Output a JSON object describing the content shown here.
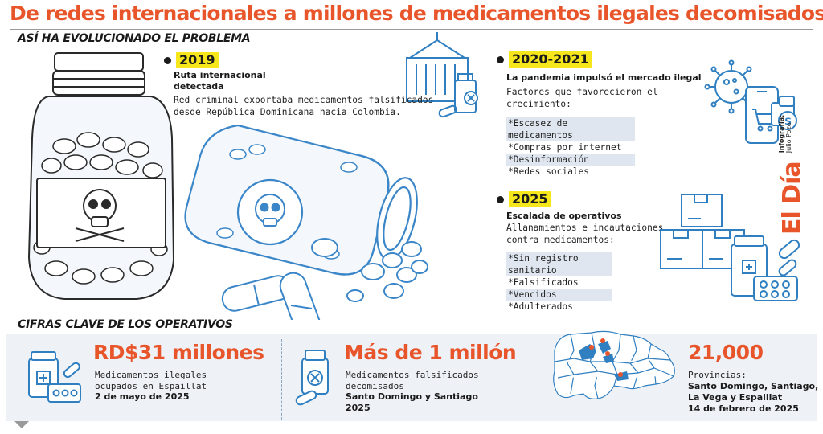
{
  "header": {
    "title": "De redes internacionales a millones de medicamentos ilegales decomisados",
    "section_evolution": "ASÍ HA EVOLUCIONADO EL PROBLEMA",
    "section_figures": "CIFRAS CLAVE DE LOS OPERATIVOS"
  },
  "timeline": {
    "y2019": {
      "year": "2019",
      "subtitle_line1": "Ruta internacional",
      "subtitle_line2": "detectada",
      "text_line1": "Red criminal exportaba medicamentos falsificados",
      "text_line2": "desde República Dominicana hacia Colombia."
    },
    "y2020": {
      "year": "2020-2021",
      "subtitle": "La pandemia impulsó el mercado ilegal",
      "text_line1": "Factores que favorecieron el",
      "text_line2": "crecimiento:",
      "items": [
        "*Escasez de medicamentos",
        "*Compras por internet",
        "*Desinformación",
        "*Redes sociales"
      ]
    },
    "y2025": {
      "year": "2025",
      "subtitle": "Escalada de operativos",
      "text_line1": "Allanamientos e incautaciones",
      "text_line2": "contra medicamentos:",
      "items": [
        "*Sin registro sanitario",
        "*Falsificados",
        "*Vencidos",
        "*Adulterados"
      ]
    }
  },
  "credit": {
    "brand": "El Día",
    "label": "Infografía:",
    "author": "Julio Pozo"
  },
  "stats": {
    "s1": {
      "value": "RD$31 millones",
      "desc_line1": "Medicamentos ilegales",
      "desc_line2": "ocupados en Espaillat",
      "date": "2 de mayo de 2025"
    },
    "s2": {
      "value": "Más de 1 millón",
      "desc_line1": "Medicamentos falsificados",
      "desc_line2": "decomisados",
      "place": "Santo Domingo y Santiago",
      "date": "2025"
    },
    "s3": {
      "value": "21,000",
      "desc_line1": "Provincias:",
      "place_line1": "Santo Domingo, Santiago,",
      "place_line2": "La Vega y Espaillat",
      "date": "14 de febrero de 2025"
    }
  },
  "colors": {
    "accent": "#e8552a",
    "highlight": "#f6e71c",
    "icon_blue": "#2f7fc1",
    "sketch_blue": "#3a86c8",
    "band": "#eef2f7"
  }
}
